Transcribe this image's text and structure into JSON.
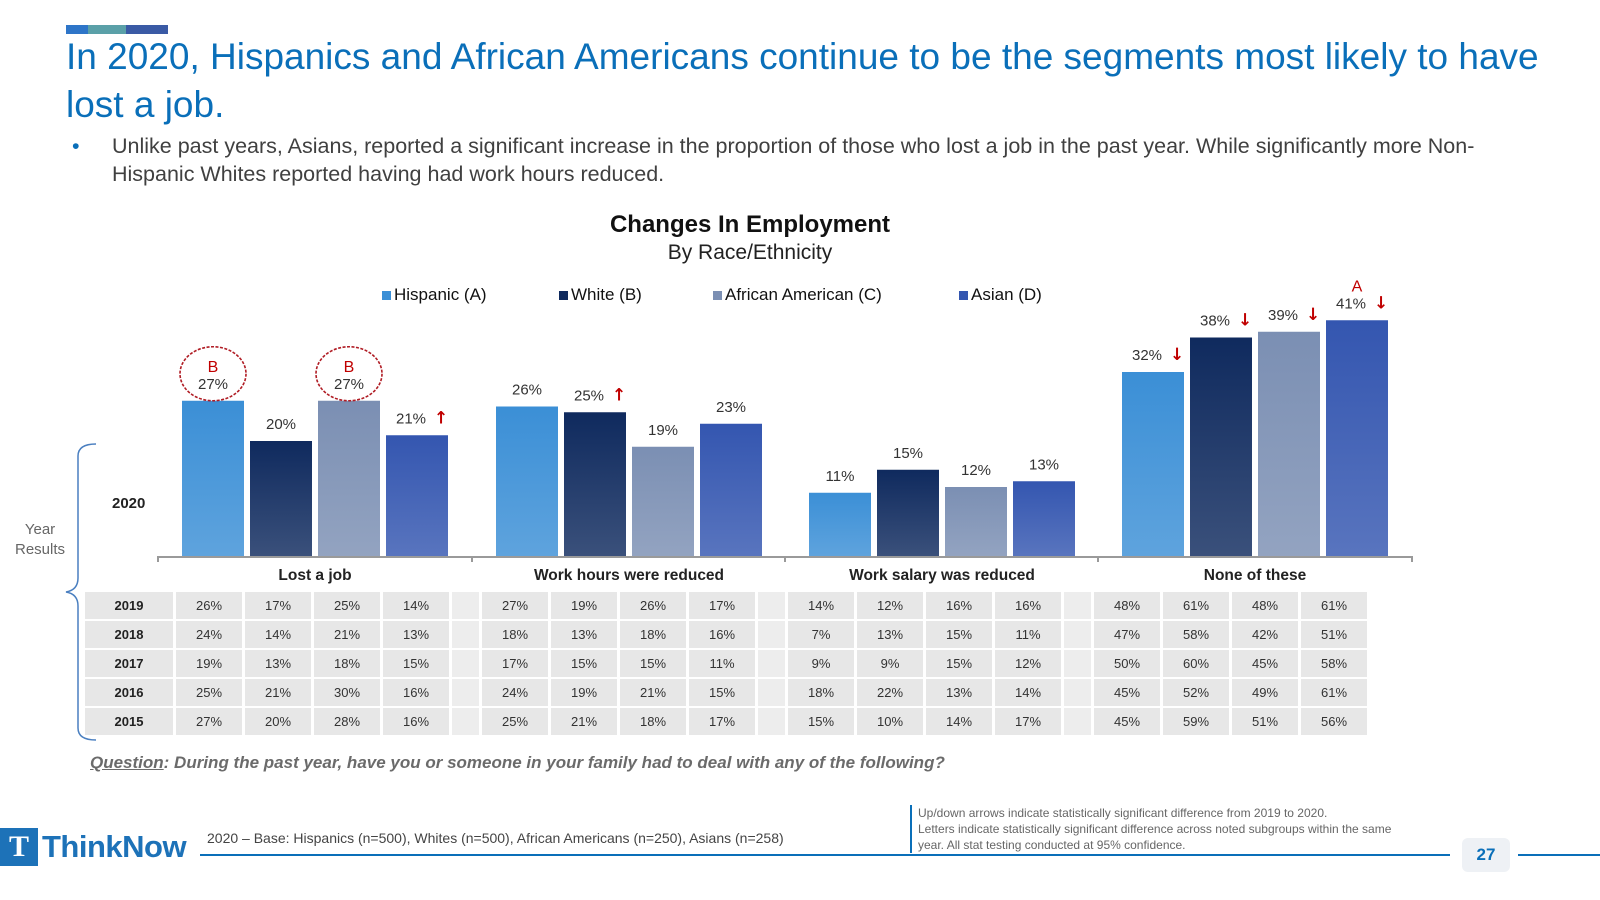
{
  "header": {
    "accent_colors": [
      "#2e75c8",
      "#5aa0a8",
      "#3a5aa5"
    ],
    "title": "In 2020, Hispanics and African Americans continue to be the segments most likely to have lost a job.",
    "bullet": "Unlike past years, Asians, reported a significant increase in the proportion of those who lost a job in the past year.  While significantly more Non-Hispanic Whites reported having had work hours reduced."
  },
  "chart_data": {
    "type": "bar",
    "title": "Changes In Employment",
    "subtitle": "By Race/Ethnicity",
    "categories": [
      "Lost a job",
      "Work hours were reduced",
      "Work salary was reduced",
      "None of these"
    ],
    "series": [
      {
        "name": "Hispanic (A)",
        "color": "#3b8fd6",
        "values": [
          27,
          26,
          11,
          32
        ]
      },
      {
        "name": "White (B)",
        "color": "#0f2a5e",
        "values": [
          20,
          25,
          15,
          38
        ]
      },
      {
        "name": "African American (C)",
        "color": "#7b8fb3",
        "values": [
          27,
          19,
          12,
          39
        ]
      },
      {
        "name": "Asian (D)",
        "color": "#3456b0",
        "values": [
          21,
          23,
          13,
          41
        ]
      }
    ],
    "arrows": [
      {
        "category": 0,
        "series": 3,
        "direction": "up"
      },
      {
        "category": 1,
        "series": 1,
        "direction": "up"
      },
      {
        "category": 3,
        "series": 0,
        "direction": "down"
      },
      {
        "category": 3,
        "series": 1,
        "direction": "down"
      },
      {
        "category": 3,
        "series": 2,
        "direction": "down"
      },
      {
        "category": 3,
        "series": 3,
        "direction": "down"
      }
    ],
    "sig_letters": [
      {
        "category": 0,
        "series": 0,
        "letter": "B",
        "circled": true
      },
      {
        "category": 0,
        "series": 2,
        "letter": "B",
        "circled": true
      },
      {
        "category": 3,
        "series": 3,
        "letter": "A",
        "circled": false
      }
    ],
    "ylim": [
      0,
      50
    ],
    "legend_position": "top",
    "row_label": "2020",
    "historical": {
      "years": [
        "2019",
        "2018",
        "2017",
        "2016",
        "2015"
      ],
      "rows": [
        [
          "26%",
          "17%",
          "25%",
          "14%",
          "27%",
          "19%",
          "26%",
          "17%",
          "14%",
          "12%",
          "16%",
          "16%",
          "48%",
          "61%",
          "48%",
          "61%"
        ],
        [
          "24%",
          "14%",
          "21%",
          "13%",
          "18%",
          "13%",
          "18%",
          "16%",
          "7%",
          "13%",
          "15%",
          "11%",
          "47%",
          "58%",
          "42%",
          "51%"
        ],
        [
          "19%",
          "13%",
          "18%",
          "15%",
          "17%",
          "15%",
          "15%",
          "11%",
          "9%",
          "9%",
          "15%",
          "12%",
          "50%",
          "60%",
          "45%",
          "58%"
        ],
        [
          "25%",
          "21%",
          "30%",
          "16%",
          "24%",
          "19%",
          "21%",
          "15%",
          "18%",
          "22%",
          "13%",
          "14%",
          "45%",
          "52%",
          "49%",
          "61%"
        ],
        [
          "27%",
          "20%",
          "28%",
          "16%",
          "25%",
          "21%",
          "18%",
          "17%",
          "15%",
          "10%",
          "14%",
          "17%",
          "45%",
          "59%",
          "51%",
          "56%"
        ]
      ]
    }
  },
  "side": {
    "year_results": [
      "Year",
      "Results"
    ]
  },
  "question": {
    "label": "Question",
    "text": ": During the past year, have you or someone in your family had to deal with any of the following?"
  },
  "footer": {
    "logo_mark": "T",
    "logo_text": "ThinkNow",
    "base": "2020 – Base: Hispanics (n=500), Whites (n=500), African Americans (n=250), Asians (n=258)",
    "note_lines": [
      "Up/down arrows indicate statistically significant difference from 2019 to 2020.",
      "Letters indicate statistically significant difference across noted subgroups within the same",
      "year.  All stat testing conducted at 95% confidence."
    ],
    "page_number": "27"
  },
  "colors": {
    "accent": "#0a6fb9",
    "arrow": "#c00000",
    "sig_letter": "#c00000"
  }
}
